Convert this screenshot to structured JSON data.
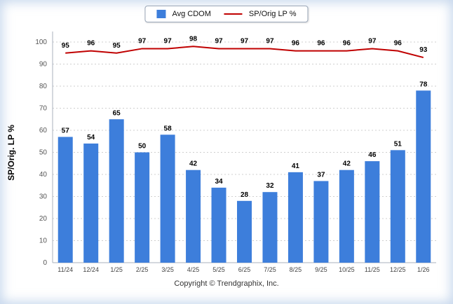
{
  "chart_data": {
    "type": "bar+line",
    "categories": [
      "11/24",
      "12/24",
      "1/25",
      "2/25",
      "3/25",
      "4/25",
      "5/25",
      "6/25",
      "7/25",
      "8/25",
      "9/25",
      "10/25",
      "11/25",
      "12/25",
      "1/26"
    ],
    "series": [
      {
        "name": "Avg CDOM",
        "type": "bar",
        "color": "#3d7edb",
        "values": [
          57,
          54,
          65,
          50,
          58,
          42,
          34,
          28,
          32,
          41,
          37,
          42,
          46,
          51,
          78
        ]
      },
      {
        "name": "SP/Orig LP %",
        "type": "line",
        "color": "#c00000",
        "values": [
          95,
          96,
          95,
          97,
          97,
          98,
          97,
          97,
          97,
          96,
          96,
          96,
          97,
          96,
          93
        ]
      }
    ],
    "title": "",
    "xlabel": "",
    "ylabel": "SP/Orig. LP %",
    "ylim": [
      0,
      100
    ],
    "ytick_step": 10,
    "grid": true,
    "legend_position": "top"
  },
  "footer": {
    "copyright": "Copyright © Trendgraphix, Inc."
  }
}
